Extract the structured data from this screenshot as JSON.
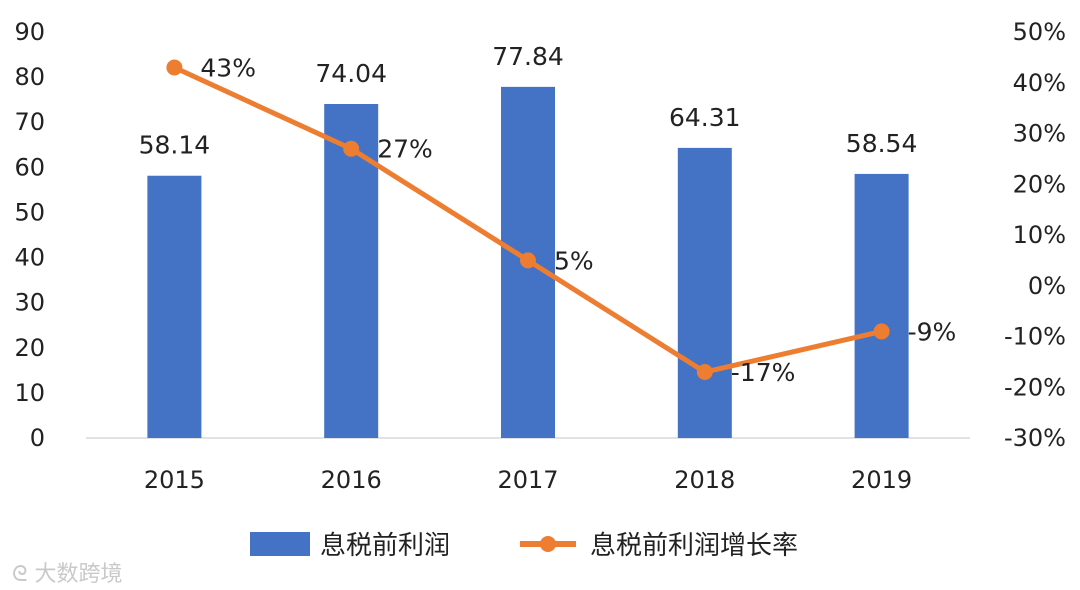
{
  "chart_data": {
    "type": "bar+line",
    "categories": [
      "2015",
      "2016",
      "2017",
      "2018",
      "2019"
    ],
    "series": [
      {
        "name": "息税前利润",
        "type": "bar",
        "axis": "left",
        "values": [
          58.14,
          74.04,
          77.84,
          64.31,
          58.54
        ],
        "labels": [
          "58.14",
          "74.04",
          "77.84",
          "64.31",
          "58.54"
        ],
        "color": "#4472C4"
      },
      {
        "name": "息税前利润增长率",
        "type": "line",
        "axis": "right",
        "values": [
          43,
          27,
          5,
          -17,
          -9
        ],
        "labels": [
          "43%",
          "27%",
          "5%",
          "-17%",
          "-9%"
        ],
        "color": "#ED7D31"
      }
    ],
    "left_axis": {
      "min": 0,
      "max": 90,
      "ticks": [
        "0",
        "10",
        "20",
        "30",
        "40",
        "50",
        "60",
        "70",
        "80",
        "90"
      ]
    },
    "right_axis": {
      "min": -30,
      "max": 50,
      "ticks": [
        "-30%",
        "-20%",
        "-10%",
        "0%",
        "10%",
        "20%",
        "30%",
        "40%",
        "50%"
      ]
    },
    "legend_position": "bottom",
    "grid": false
  },
  "watermark": "大数跨境"
}
